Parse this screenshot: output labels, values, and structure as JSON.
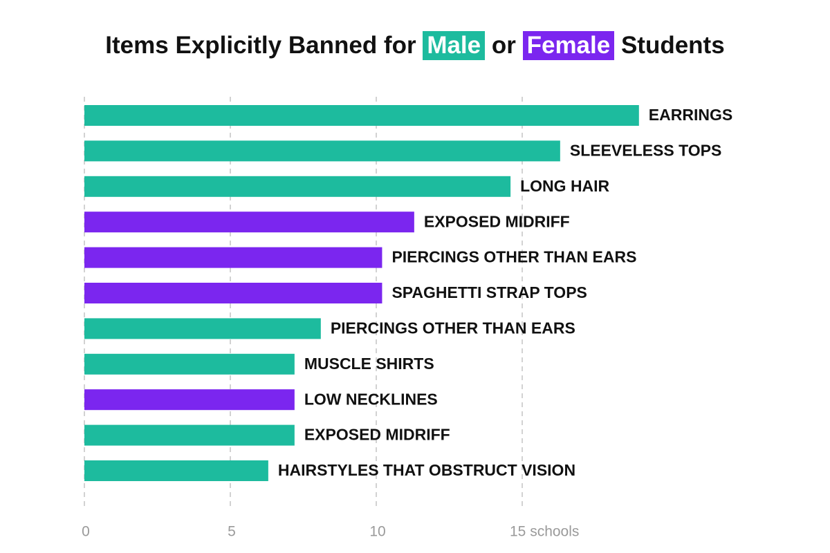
{
  "title": {
    "prefix": "Items Explicitly Banned for",
    "male_label": "Male",
    "connector": "or",
    "female_label": "Female",
    "suffix": "Students"
  },
  "colors": {
    "male": "#1dbb9e",
    "female": "#7b26ef",
    "grid": "#c4c4c4",
    "tick": "#9a9a9a",
    "text": "#111111"
  },
  "chart_data": {
    "type": "bar",
    "orientation": "horizontal",
    "title": "Items Explicitly Banned for Male or Female Students",
    "xlabel": "schools",
    "xlim": [
      0,
      19
    ],
    "x_ticks": [
      0,
      5,
      10,
      15
    ],
    "x_tick_labels": [
      "0",
      "5",
      "10",
      "15 schools"
    ],
    "grid": "vertical dashed",
    "legend": "in title",
    "categories": [
      "EARRINGS",
      "SLEEVELESS TOPS",
      "LONG HAIR",
      "EXPOSED MIDRIFF",
      "PIERCINGS OTHER THAN EARS",
      "SPAGHETTI STRAP TOPS",
      "PIERCINGS OTHER THAN EARS",
      "MUSCLE SHIRTS",
      "LOW NECKLINES",
      "EXPOSED MIDRIFF",
      "HAIRSTYLES THAT OBSTRUCT VISION"
    ],
    "values": [
      19,
      16.3,
      14.6,
      11.3,
      10.2,
      10.2,
      8.1,
      7.2,
      7.2,
      7.2,
      6.3
    ],
    "groups": [
      "Male",
      "Male",
      "Male",
      "Female",
      "Female",
      "Female",
      "Male",
      "Male",
      "Female",
      "Male",
      "Male"
    ]
  }
}
